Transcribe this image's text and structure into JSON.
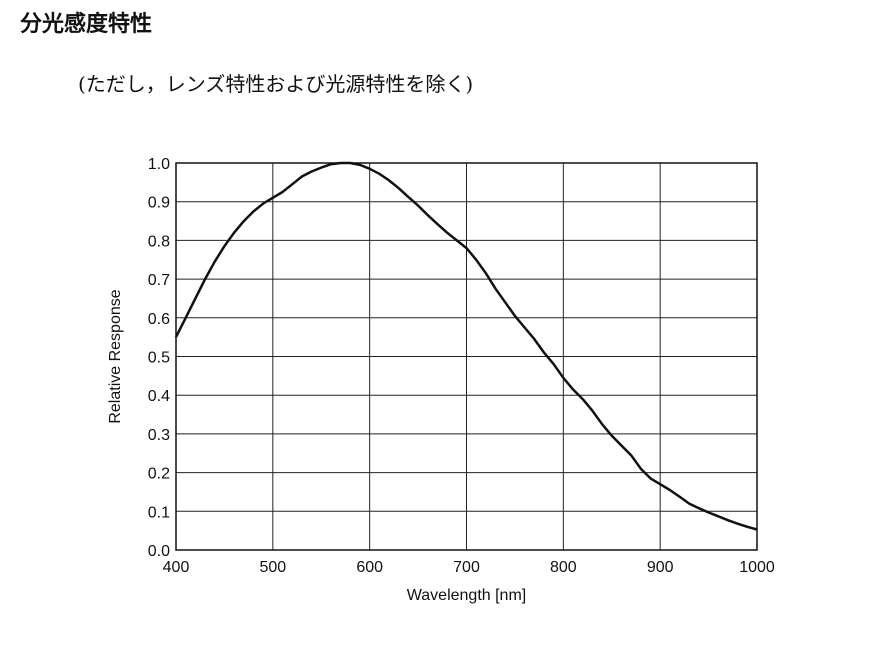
{
  "page": {
    "title": "分光感度特性",
    "note": "(ただし，レンズ特性および光源特性を除く)"
  },
  "chart_data": {
    "type": "line",
    "xlabel": "Wavelength [nm]",
    "ylabel": "Relative Response",
    "xlim": [
      400,
      1000
    ],
    "ylim": [
      0.0,
      1.0
    ],
    "xticks": [
      400,
      500,
      600,
      700,
      800,
      900,
      1000
    ],
    "yticks": [
      0.0,
      0.1,
      0.2,
      0.3,
      0.4,
      0.5,
      0.6,
      0.7,
      0.8,
      0.9,
      1.0
    ],
    "ytick_labels": [
      "0.0",
      "0.1",
      "0.2",
      "0.3",
      "0.4",
      "0.5",
      "0.6",
      "0.7",
      "0.8",
      "0.9",
      "1.0"
    ],
    "grid": true,
    "series": [
      {
        "x": [
          400,
          410,
          420,
          430,
          440,
          450,
          460,
          470,
          480,
          490,
          500,
          510,
          520,
          530,
          540,
          550,
          560,
          570,
          580,
          590,
          600,
          610,
          620,
          630,
          640,
          650,
          660,
          670,
          680,
          690,
          700,
          710,
          720,
          730,
          740,
          750,
          760,
          770,
          780,
          790,
          800,
          810,
          820,
          830,
          840,
          850,
          860,
          870,
          880,
          890,
          900,
          910,
          920,
          930,
          940,
          950,
          960,
          970,
          980,
          990,
          1000
        ],
        "y": [
          0.55,
          0.6,
          0.65,
          0.7,
          0.745,
          0.785,
          0.82,
          0.85,
          0.875,
          0.895,
          0.91,
          0.925,
          0.945,
          0.965,
          0.978,
          0.988,
          0.997,
          1.0,
          1.0,
          0.995,
          0.985,
          0.972,
          0.955,
          0.935,
          0.912,
          0.89,
          0.865,
          0.842,
          0.82,
          0.8,
          0.78,
          0.75,
          0.715,
          0.675,
          0.64,
          0.605,
          0.575,
          0.545,
          0.51,
          0.48,
          0.445,
          0.415,
          0.39,
          0.36,
          0.325,
          0.295,
          0.27,
          0.245,
          0.21,
          0.185,
          0.17,
          0.155,
          0.138,
          0.12,
          0.108,
          0.097,
          0.087,
          0.077,
          0.068,
          0.06,
          0.053
        ],
        "color": "#111111"
      }
    ]
  }
}
